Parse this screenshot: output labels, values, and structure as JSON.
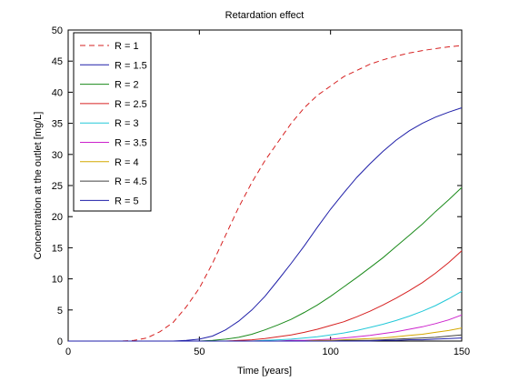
{
  "chart_data": {
    "type": "line",
    "title": "Retardation effect",
    "xlabel": "Time [years]",
    "ylabel": "Concentration at the outlet [mg/L]",
    "xlim": [
      0,
      150
    ],
    "ylim": [
      0,
      50
    ],
    "xticks": [
      "0",
      "50",
      "100",
      "150"
    ],
    "yticks": [
      "0",
      "5",
      "10",
      "15",
      "20",
      "25",
      "30",
      "35",
      "40",
      "45",
      "50"
    ],
    "grid": false,
    "legend_position": "top-left",
    "x": [
      0,
      10,
      20,
      25,
      30,
      35,
      40,
      45,
      50,
      55,
      60,
      65,
      70,
      75,
      80,
      85,
      90,
      95,
      100,
      105,
      110,
      115,
      120,
      125,
      130,
      135,
      140,
      145,
      150
    ],
    "series": [
      {
        "name": "R = 1",
        "color": "#d62020",
        "dash": true,
        "values": [
          0,
          0,
          0,
          0.1,
          0.5,
          1.5,
          3,
          5.5,
          8.5,
          12.5,
          17,
          21.5,
          25.5,
          29,
          32,
          35,
          37.5,
          39.5,
          41,
          42.5,
          43.5,
          44.5,
          45.2,
          45.8,
          46.3,
          46.7,
          47.0,
          47.3,
          47.5
        ]
      },
      {
        "name": "R = 1.5",
        "color": "#1f1fa8",
        "dash": false,
        "values": [
          0,
          0,
          0,
          0,
          0,
          0,
          0,
          0.1,
          0.3,
          0.8,
          1.8,
          3.2,
          5.0,
          7.2,
          9.8,
          12.5,
          15.3,
          18.3,
          21.2,
          23.8,
          26.3,
          28.5,
          30.5,
          32.3,
          33.8,
          35.0,
          36.0,
          36.8,
          37.5
        ]
      },
      {
        "name": "R = 2",
        "color": "#1a8a1a",
        "dash": false,
        "values": [
          0,
          0,
          0,
          0,
          0,
          0,
          0,
          0,
          0,
          0.1,
          0.3,
          0.6,
          1.1,
          1.8,
          2.6,
          3.5,
          4.6,
          5.8,
          7.2,
          8.7,
          10.2,
          11.8,
          13.4,
          15.2,
          17.0,
          18.8,
          20.8,
          22.7,
          24.7
        ]
      },
      {
        "name": "R = 2.5",
        "color": "#d62020",
        "dash": false,
        "values": [
          0,
          0,
          0,
          0,
          0,
          0,
          0,
          0,
          0,
          0,
          0,
          0.1,
          0.2,
          0.4,
          0.7,
          1.0,
          1.4,
          1.9,
          2.5,
          3.1,
          3.9,
          4.8,
          5.8,
          6.9,
          8.1,
          9.4,
          10.9,
          12.6,
          14.5
        ]
      },
      {
        "name": "R = 3",
        "color": "#22c8d8",
        "dash": false,
        "values": [
          0,
          0,
          0,
          0,
          0,
          0,
          0,
          0,
          0,
          0,
          0,
          0,
          0,
          0.1,
          0.2,
          0.3,
          0.5,
          0.7,
          1.0,
          1.3,
          1.7,
          2.2,
          2.7,
          3.3,
          4.0,
          4.8,
          5.7,
          6.8,
          8.0
        ]
      },
      {
        "name": "R = 3.5",
        "color": "#cc22cc",
        "dash": false,
        "values": [
          0,
          0,
          0,
          0,
          0,
          0,
          0,
          0,
          0,
          0,
          0,
          0,
          0,
          0,
          0,
          0.1,
          0.1,
          0.2,
          0.3,
          0.5,
          0.7,
          0.9,
          1.2,
          1.5,
          1.9,
          2.3,
          2.8,
          3.4,
          4.2
        ]
      },
      {
        "name": "R = 4",
        "color": "#d4a800",
        "dash": false,
        "values": [
          0,
          0,
          0,
          0,
          0,
          0,
          0,
          0,
          0,
          0,
          0,
          0,
          0,
          0,
          0,
          0,
          0,
          0.1,
          0.1,
          0.2,
          0.3,
          0.4,
          0.5,
          0.7,
          0.9,
          1.1,
          1.4,
          1.7,
          2.1
        ]
      },
      {
        "name": "R = 4.5",
        "color": "#404040",
        "dash": false,
        "values": [
          0,
          0,
          0,
          0,
          0,
          0,
          0,
          0,
          0,
          0,
          0,
          0,
          0,
          0,
          0,
          0,
          0,
          0,
          0,
          0.1,
          0.1,
          0.1,
          0.2,
          0.3,
          0.4,
          0.5,
          0.6,
          0.8,
          1.0
        ]
      },
      {
        "name": "R = 5",
        "color": "#1f1fa8",
        "dash": false,
        "values": [
          0,
          0,
          0,
          0,
          0,
          0,
          0,
          0,
          0,
          0,
          0,
          0,
          0,
          0,
          0,
          0,
          0,
          0,
          0,
          0,
          0,
          0,
          0.1,
          0.1,
          0.2,
          0.2,
          0.3,
          0.4,
          0.5
        ]
      }
    ]
  }
}
